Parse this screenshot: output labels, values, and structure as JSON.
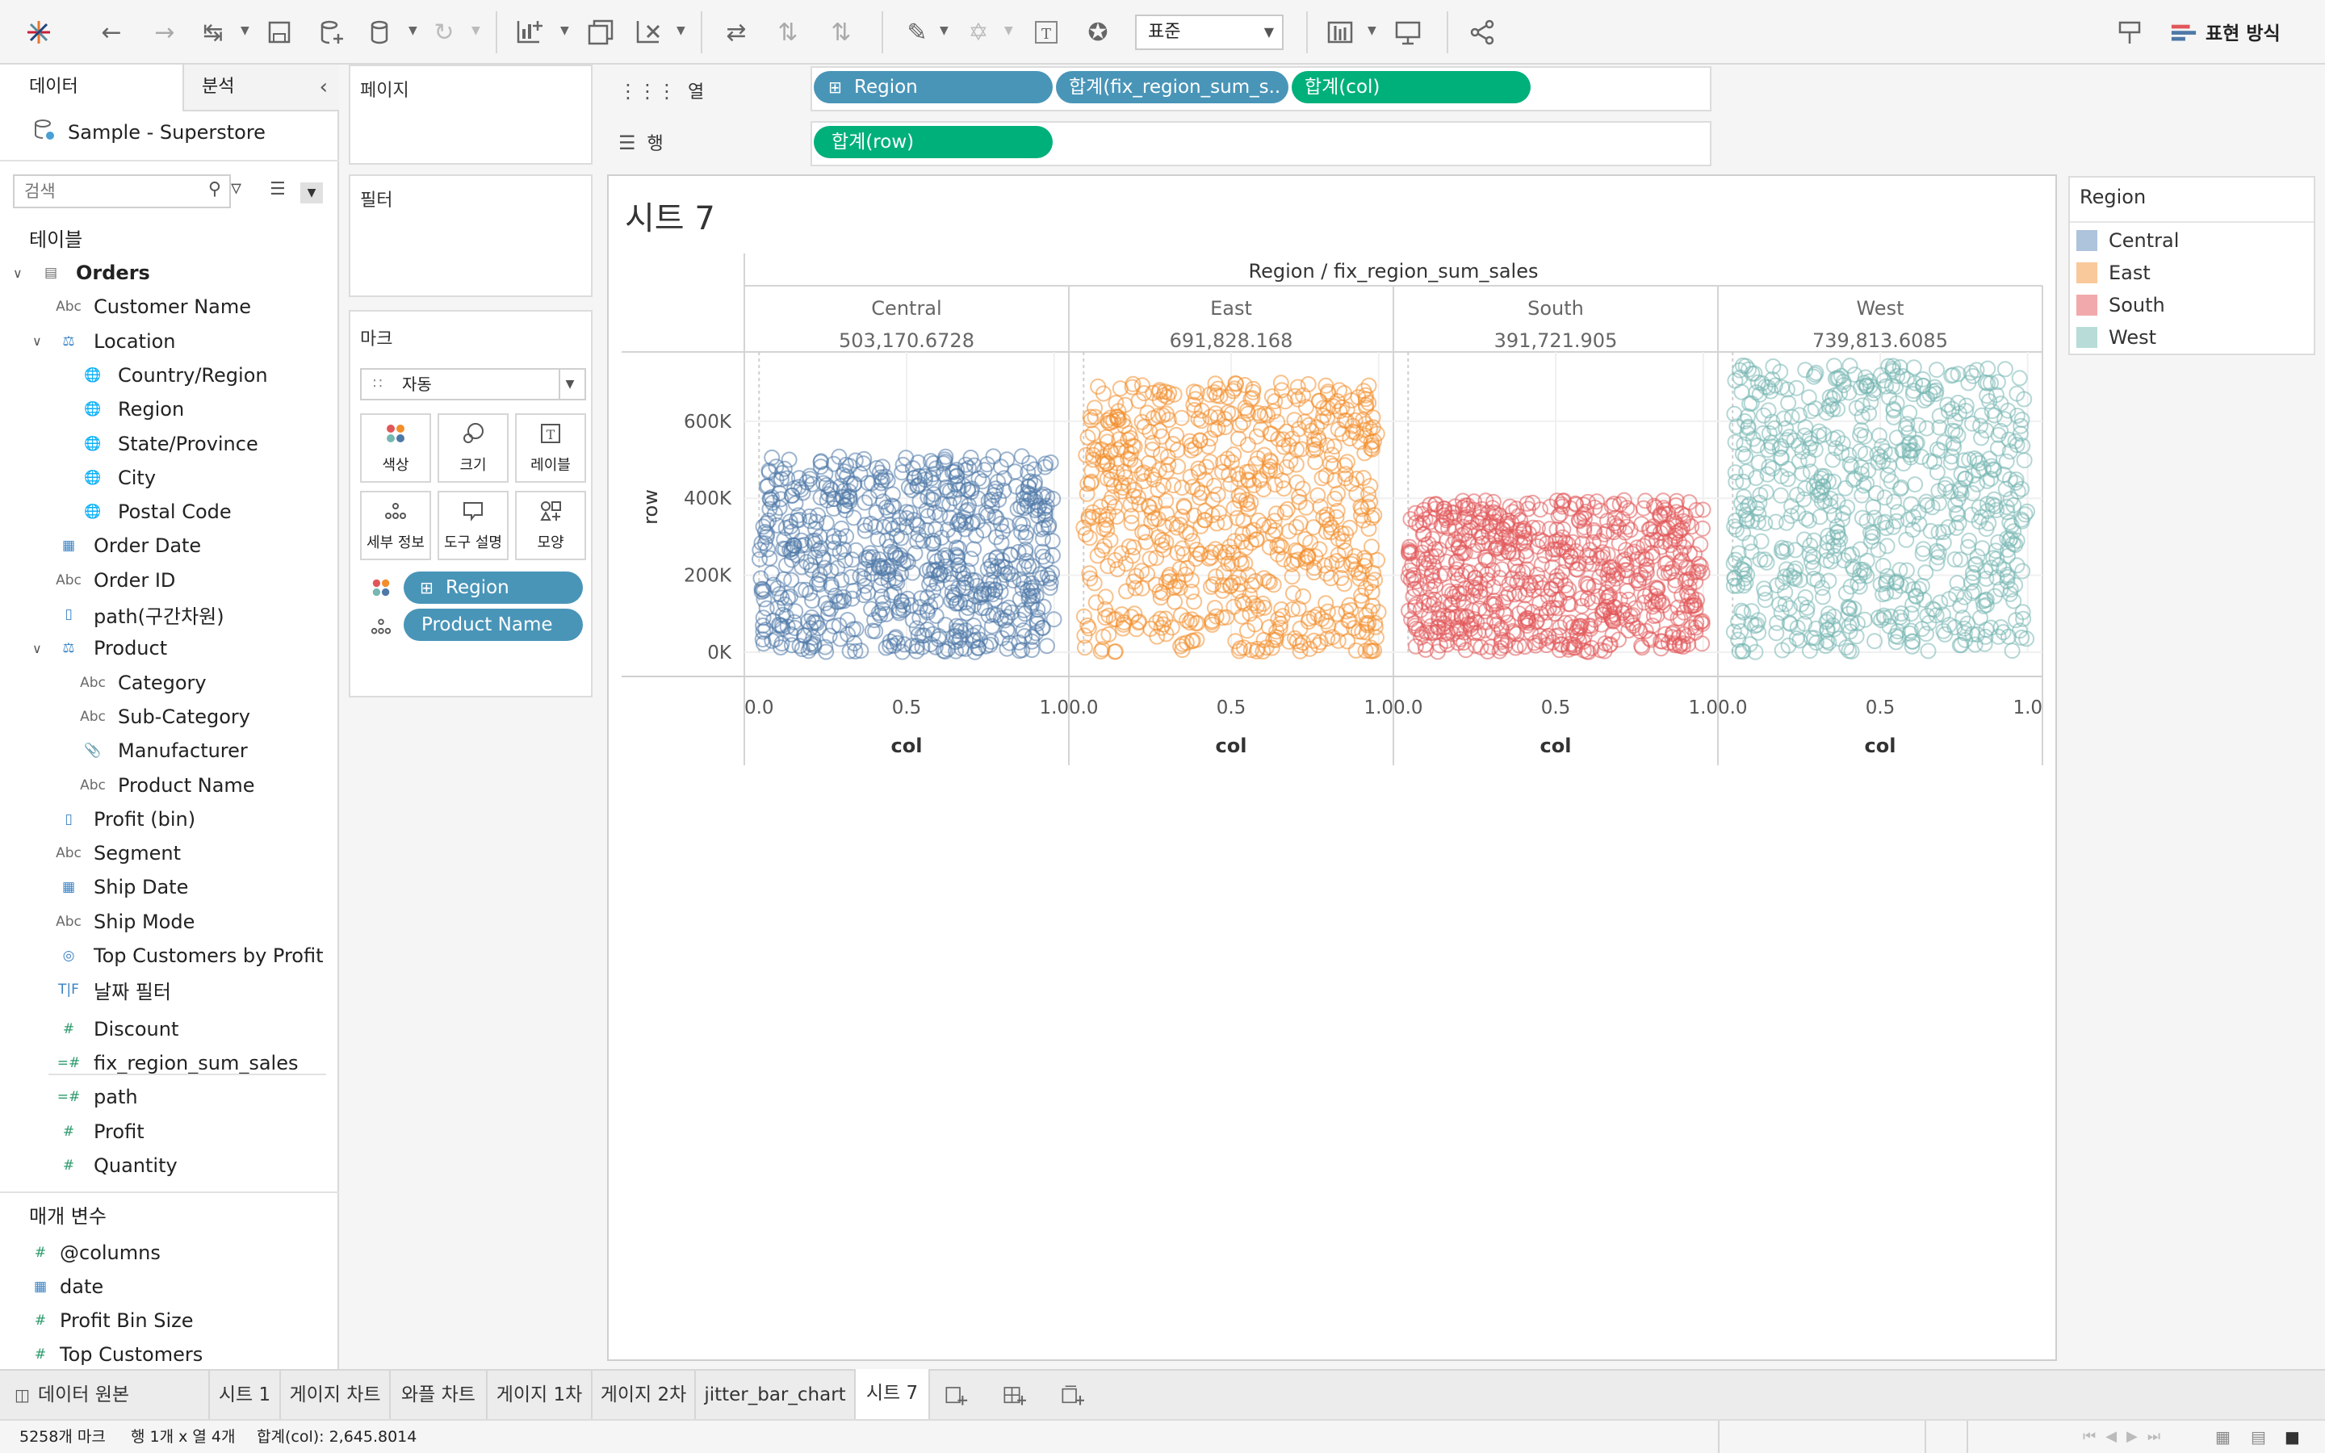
{
  "toolbar": {
    "std_select": "표준",
    "show_me_label": "표현 방식"
  },
  "left_pane": {
    "tab_data": "데이터",
    "tab_analysis": "분석",
    "datasource": "Sample - Superstore",
    "search_placeholder": "검색",
    "tables_label": "테이블",
    "fields": [
      {
        "label": "Orders",
        "icon": "table-icon"
      },
      {
        "label": "Customer Name",
        "icon": "abc-icon"
      },
      {
        "label": "Location",
        "icon": "hierarchy-icon"
      },
      {
        "label": "Country/Region",
        "icon": "globe-icon"
      },
      {
        "label": "Region",
        "icon": "globe-icon"
      },
      {
        "label": "State/Province",
        "icon": "globe-icon"
      },
      {
        "label": "City",
        "icon": "globe-icon"
      },
      {
        "label": "Postal Code",
        "icon": "globe-icon"
      },
      {
        "label": "Order Date",
        "icon": "calendar-icon"
      },
      {
        "label": "Order ID",
        "icon": "abc-icon"
      },
      {
        "label": "path(구간차원)",
        "icon": "bin-icon"
      },
      {
        "label": "Product",
        "icon": "hierarchy-icon"
      },
      {
        "label": "Category",
        "icon": "abc-icon"
      },
      {
        "label": "Sub-Category",
        "icon": "abc-icon"
      },
      {
        "label": "Manufacturer",
        "icon": "paperclip-icon"
      },
      {
        "label": "Product Name",
        "icon": "abc-icon"
      },
      {
        "label": "Profit (bin)",
        "icon": "bin-icon"
      },
      {
        "label": "Segment",
        "icon": "abc-icon"
      },
      {
        "label": "Ship Date",
        "icon": "calendar-icon"
      },
      {
        "label": "Ship Mode",
        "icon": "abc-icon"
      },
      {
        "label": "Top Customers by Profit",
        "icon": "set-icon"
      },
      {
        "label": "날짜 필터",
        "icon": "boolean-icon"
      },
      {
        "label": "Discount",
        "icon": "hash-icon"
      },
      {
        "label": "fix_region_sum_sales",
        "icon": "calc-hash-icon"
      },
      {
        "label": "path",
        "icon": "calc-hash-icon"
      },
      {
        "label": "Profit",
        "icon": "hash-icon"
      },
      {
        "label": "Quantity",
        "icon": "hash-icon"
      }
    ],
    "params_label": "매개 변수",
    "params": [
      {
        "label": "@columns",
        "icon": "hash-icon"
      },
      {
        "label": "date",
        "icon": "calendar-icon"
      },
      {
        "label": "Profit Bin Size",
        "icon": "hash-icon"
      },
      {
        "label": "Top Customers",
        "icon": "hash-icon"
      }
    ]
  },
  "cards": {
    "pages": "페이지",
    "filters": "필터",
    "marks": "마크",
    "mark_type": "자동",
    "mark_buttons": [
      "색상",
      "크기",
      "레이블",
      "세부 정보",
      "도구 설명",
      "모양"
    ],
    "mark_pills": [
      "Region",
      "Product Name"
    ]
  },
  "shelves": {
    "columns_label": "열",
    "rows_label": "행",
    "column_pills": [
      "Region",
      "합계(fix_region_sum_s..",
      "합계(col)"
    ],
    "row_pills": [
      "합계(row)"
    ]
  },
  "sheet_title": "시트 7",
  "legend": {
    "title": "Region",
    "items": [
      {
        "label": "Central",
        "color": "#aec3dc"
      },
      {
        "label": "East",
        "color": "#f9c89b"
      },
      {
        "label": "South",
        "color": "#f2a9ab"
      },
      {
        "label": "West",
        "color": "#b8dcd7"
      }
    ]
  },
  "chart_data": {
    "type": "scatter",
    "header_title": "Region / fix_region_sum_sales",
    "panels": [
      {
        "region": "Central",
        "sum_sales": "503,170.6728",
        "color": "#4e79a7",
        "y_range": [
          0,
          510000
        ],
        "x_range": [
          0,
          1
        ]
      },
      {
        "region": "East",
        "sum_sales": "691,828.168",
        "color": "#f28e2b",
        "y_range": [
          0,
          700000
        ],
        "x_range": [
          0,
          1
        ]
      },
      {
        "region": "South",
        "sum_sales": "391,721.905",
        "color": "#e15759",
        "y_range": [
          0,
          395000
        ],
        "x_range": [
          0,
          1
        ]
      },
      {
        "region": "West",
        "sum_sales": "739,813.6085",
        "color": "#76b7b2",
        "y_range": [
          0,
          745000
        ],
        "x_range": [
          0,
          1
        ]
      }
    ],
    "xlabel": "col",
    "ylabel": "row",
    "x_ticks": [
      "0.0",
      "0.5",
      "1.0"
    ],
    "y_ticks": [
      {
        "v": 0,
        "t": "0K"
      },
      {
        "v": 200000,
        "t": "200K"
      },
      {
        "v": 400000,
        "t": "400K"
      },
      {
        "v": 600000,
        "t": "600K"
      }
    ],
    "ylim": [
      0,
      780000
    ],
    "xlim": [
      -0.05,
      1.05
    ],
    "grid": true,
    "legend_position": "right",
    "marks_count": 5258
  },
  "sheet_tabs": [
    "데이터 원본",
    "시트 1",
    "게이지 차트",
    "와플 차트",
    "게이지 1차",
    "게이지 2차",
    "jitter_bar_chart",
    "시트 7"
  ],
  "status": {
    "marks": "5258개 마크",
    "rowscols": "행 1개 x 열 4개",
    "sum": "합계(col): 2,645.8014"
  }
}
